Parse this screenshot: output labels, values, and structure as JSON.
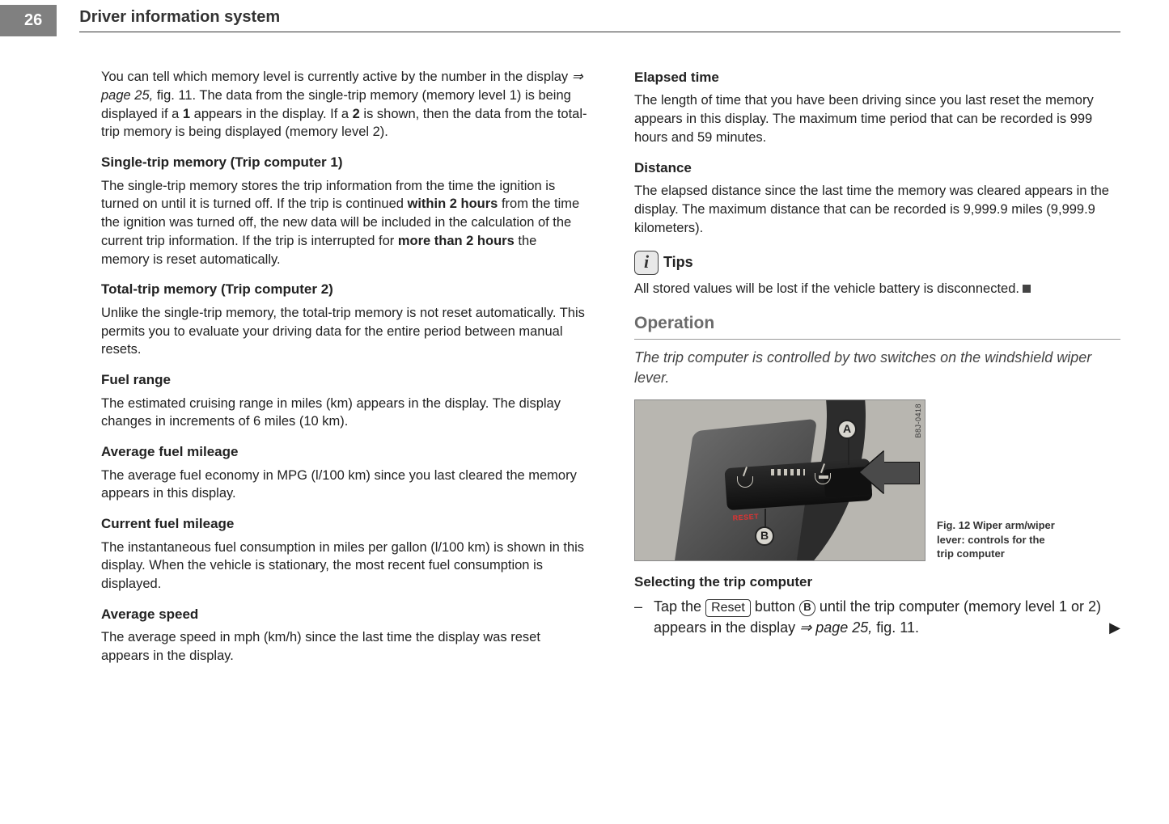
{
  "page_number": "26",
  "header_title": "Driver information system",
  "left": {
    "intro": {
      "pre": "You can tell which memory level is currently active by the number in the display ",
      "ref": "⇒ page 25,",
      "post_ref": " fig. 11. The data from the single-trip memory (memory level 1) is being displayed if a ",
      "b1": "1",
      "mid": " appears in the display. If a ",
      "b2": "2",
      "end": " is shown, then the data from the total-trip memory is being displayed (memory level 2)."
    },
    "h1": "Single-trip memory (Trip computer 1)",
    "p1": {
      "a": "The single-trip memory stores the trip information from the time the ignition is turned on until it is turned off. If the trip is continued ",
      "b1": "within 2 hours",
      "b": " from the time the ignition was turned off, the new data will be included in the calculation of the current trip information. If the trip is interrupted for ",
      "b2": "more than 2 hours",
      "c": " the memory is reset automatically."
    },
    "h2": "Total-trip memory (Trip computer 2)",
    "p2": "Unlike the single-trip memory, the total-trip memory is not reset automatically. This permits you to evaluate your driving data for the entire period between manual resets.",
    "h3": "Fuel range",
    "p3": "The estimated cruising range in miles (km) appears in the display. The display changes in increments of 6 miles (10 km).",
    "h4": "Average fuel mileage",
    "p4": "The average fuel economy in MPG (l/100 km) since you last cleared the memory appears in this display.",
    "h5": "Current fuel mileage",
    "p5": "The instantaneous fuel consumption in miles per gallon (l/100 km) is shown in this display. When the vehicle is stationary, the most recent fuel consumption is displayed.",
    "h6": "Average speed",
    "p6": "The average speed in mph (km/h) since the last time the display was reset appears in the display."
  },
  "right": {
    "h1": "Elapsed time",
    "p1": "The length of time that you have been driving since you last reset the memory appears in this display. The maximum time period that can be recorded is 999 hours and 59 minutes.",
    "h2": "Distance",
    "p2": "The elapsed distance since the last time the memory was cleared appears in the display. The maximum distance that can be recorded is 9,999.9 miles (9,999.9 kilometers).",
    "tips_label": "Tips",
    "tips_text": "All stored values will be lost if the vehicle battery is disconnected.",
    "section_title": "Operation",
    "section_sub": "The trip computer is controlled by two switches on the windshield wiper lever.",
    "fig": {
      "code": "B8J-0418",
      "labelA": "A",
      "labelB": "B",
      "caption": "Fig. 12  Wiper arm/wiper lever: controls for the trip computer"
    },
    "h3": "Selecting the trip computer",
    "step": {
      "dash": "–",
      "a": "Tap the ",
      "reset": "Reset",
      "b": " button ",
      "circ": "B",
      "c": " until the trip computer (memory level 1 or 2) appears in the display ",
      "ref": "⇒ page 25,",
      "d": " fig. 11.",
      "cont": "▶"
    }
  }
}
